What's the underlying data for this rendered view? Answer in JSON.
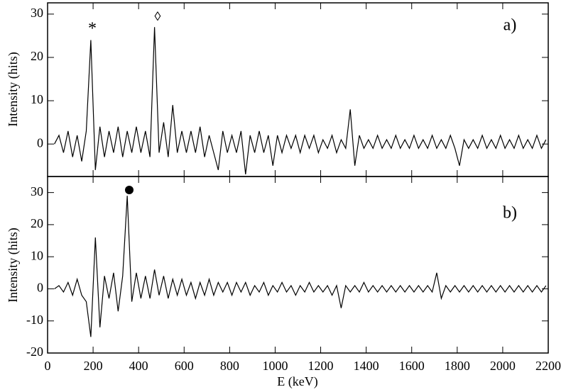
{
  "chart_data": [
    {
      "type": "line",
      "ylabel": "Intensity (hits)",
      "color": "#000000",
      "annotations": [
        "*",
        "◊",
        "a)"
      ],
      "xlim": [
        0,
        2200
      ],
      "xticks": [
        0,
        200,
        400,
        600,
        800,
        1000,
        1200,
        1400,
        1600,
        1800,
        2000,
        2200
      ],
      "ylim": [
        -7.5,
        32.6
      ],
      "yticks": [
        0,
        10,
        20,
        30
      ],
      "x": [
        30,
        50,
        70,
        90,
        110,
        130,
        150,
        170,
        190,
        210,
        230,
        250,
        270,
        290,
        310,
        330,
        350,
        370,
        390,
        410,
        430,
        450,
        470,
        490,
        510,
        530,
        550,
        570,
        590,
        610,
        630,
        650,
        670,
        690,
        710,
        730,
        750,
        770,
        790,
        810,
        830,
        850,
        870,
        890,
        910,
        930,
        950,
        970,
        990,
        1010,
        1030,
        1050,
        1070,
        1090,
        1110,
        1130,
        1150,
        1170,
        1190,
        1210,
        1230,
        1250,
        1270,
        1290,
        1310,
        1330,
        1350,
        1370,
        1390,
        1410,
        1430,
        1450,
        1470,
        1490,
        1510,
        1530,
        1550,
        1570,
        1590,
        1610,
        1630,
        1650,
        1670,
        1690,
        1710,
        1730,
        1750,
        1770,
        1790,
        1810,
        1830,
        1850,
        1870,
        1890,
        1910,
        1930,
        1950,
        1970,
        1990,
        2010,
        2030,
        2050,
        2070,
        2090,
        2110,
        2130,
        2150,
        2170,
        2190
      ],
      "values": [
        0,
        2,
        -2,
        3,
        -3,
        2,
        -4,
        3,
        24,
        -6,
        4,
        -3,
        3,
        -2,
        4,
        -3,
        3,
        -2,
        4,
        -2,
        3,
        -3,
        27,
        -2,
        5,
        -3,
        9,
        -2,
        3,
        -2,
        3,
        -2,
        4,
        -3,
        2,
        -2,
        -6,
        3,
        -2,
        2,
        -2,
        3,
        -7,
        2,
        -2,
        3,
        -2,
        2,
        -5,
        2,
        -2,
        2,
        -1,
        2,
        -2,
        2,
        -1,
        2,
        -2,
        1,
        -1,
        2,
        -2,
        1,
        -1,
        8,
        -5,
        2,
        -1,
        1,
        -1,
        2,
        -1,
        1,
        -1,
        2,
        -1,
        1,
        -1,
        2,
        -1,
        1,
        -1,
        2,
        -1,
        1,
        -1,
        2,
        -1,
        -5,
        1,
        -1,
        1,
        -1,
        2,
        -1,
        1,
        -1,
        2,
        -1,
        1,
        -1,
        2,
        -1,
        1,
        -1,
        2,
        -1,
        1
      ]
    },
    {
      "type": "line",
      "ylabel": "Intensity (hits)",
      "xlabel": "E (keV)",
      "color": "#000000",
      "annotations": [
        "b)"
      ],
      "xlim": [
        0,
        2200
      ],
      "xticks": [
        0,
        200,
        400,
        600,
        800,
        1000,
        1200,
        1400,
        1600,
        1800,
        2000,
        2200
      ],
      "ylim": [
        -20,
        35
      ],
      "yticks": [
        -20,
        -10,
        0,
        10,
        20,
        30
      ],
      "x": [
        30,
        50,
        70,
        90,
        110,
        130,
        150,
        170,
        190,
        210,
        230,
        250,
        270,
        290,
        310,
        330,
        350,
        370,
        390,
        410,
        430,
        450,
        470,
        490,
        510,
        530,
        550,
        570,
        590,
        610,
        630,
        650,
        670,
        690,
        710,
        730,
        750,
        770,
        790,
        810,
        830,
        850,
        870,
        890,
        910,
        930,
        950,
        970,
        990,
        1010,
        1030,
        1050,
        1070,
        1090,
        1110,
        1130,
        1150,
        1170,
        1190,
        1210,
        1230,
        1250,
        1270,
        1290,
        1310,
        1330,
        1350,
        1370,
        1390,
        1410,
        1430,
        1450,
        1470,
        1490,
        1510,
        1530,
        1550,
        1570,
        1590,
        1610,
        1630,
        1650,
        1670,
        1690,
        1710,
        1730,
        1750,
        1770,
        1790,
        1810,
        1830,
        1850,
        1870,
        1890,
        1910,
        1930,
        1950,
        1970,
        1990,
        2010,
        2030,
        2050,
        2070,
        2090,
        2110,
        2130,
        2150,
        2170,
        2190
      ],
      "values": [
        0,
        1,
        -1,
        2,
        -2,
        3,
        -2,
        -4,
        -15,
        16,
        -12,
        4,
        -3,
        5,
        -7,
        4,
        29,
        -4,
        5,
        -3,
        4,
        -3,
        6,
        -2,
        4,
        -3,
        3,
        -2,
        3,
        -2,
        2,
        -3,
        2,
        -2,
        3,
        -2,
        2,
        -1,
        2,
        -2,
        2,
        -1,
        2,
        -2,
        1,
        -1,
        2,
        -2,
        1,
        -1,
        2,
        -1,
        1,
        -2,
        1,
        -1,
        2,
        -1,
        1,
        -1,
        1,
        -2,
        1,
        -6,
        1,
        -1,
        1,
        -1,
        2,
        -1,
        1,
        -1,
        1,
        -1,
        1,
        -1,
        1,
        -1,
        1,
        -1,
        1,
        -1,
        1,
        -1,
        5,
        -3,
        1,
        -1,
        1,
        -1,
        1,
        -1,
        1,
        -1,
        1,
        -1,
        1,
        -1,
        1,
        -1,
        1,
        -1,
        1,
        -1,
        1,
        -1,
        1,
        -1,
        1
      ]
    }
  ]
}
